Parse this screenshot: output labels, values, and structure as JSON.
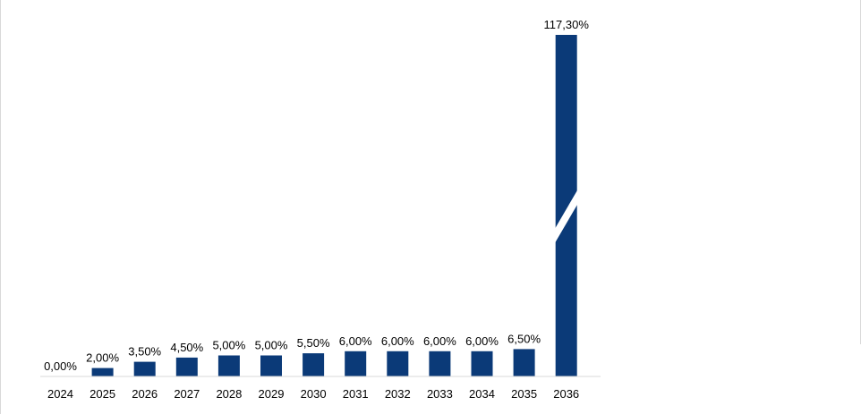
{
  "chart_data": {
    "type": "bar",
    "categories": [
      "2024",
      "2025",
      "2026",
      "2027",
      "2028",
      "2029",
      "2030",
      "2031",
      "2032",
      "2033",
      "2034",
      "2035",
      "2036"
    ],
    "values": [
      0.0,
      2.0,
      3.5,
      4.5,
      5.0,
      5.0,
      5.5,
      6.0,
      6.0,
      6.0,
      6.0,
      6.5,
      117.3
    ],
    "data_labels": [
      "0,00%",
      "2,00%",
      "3,50%",
      "4,50%",
      "5,00%",
      "5,00%",
      "5,50%",
      "6,00%",
      "6,00%",
      "6,00%",
      "6,00%",
      "6,50%",
      "117,30%"
    ],
    "title": "",
    "xlabel": "",
    "ylabel": "",
    "bar_color": "#0b3a78",
    "axis_line_color": "#d9d9d9",
    "broken_axis": true,
    "grid": false,
    "legend": "none"
  }
}
